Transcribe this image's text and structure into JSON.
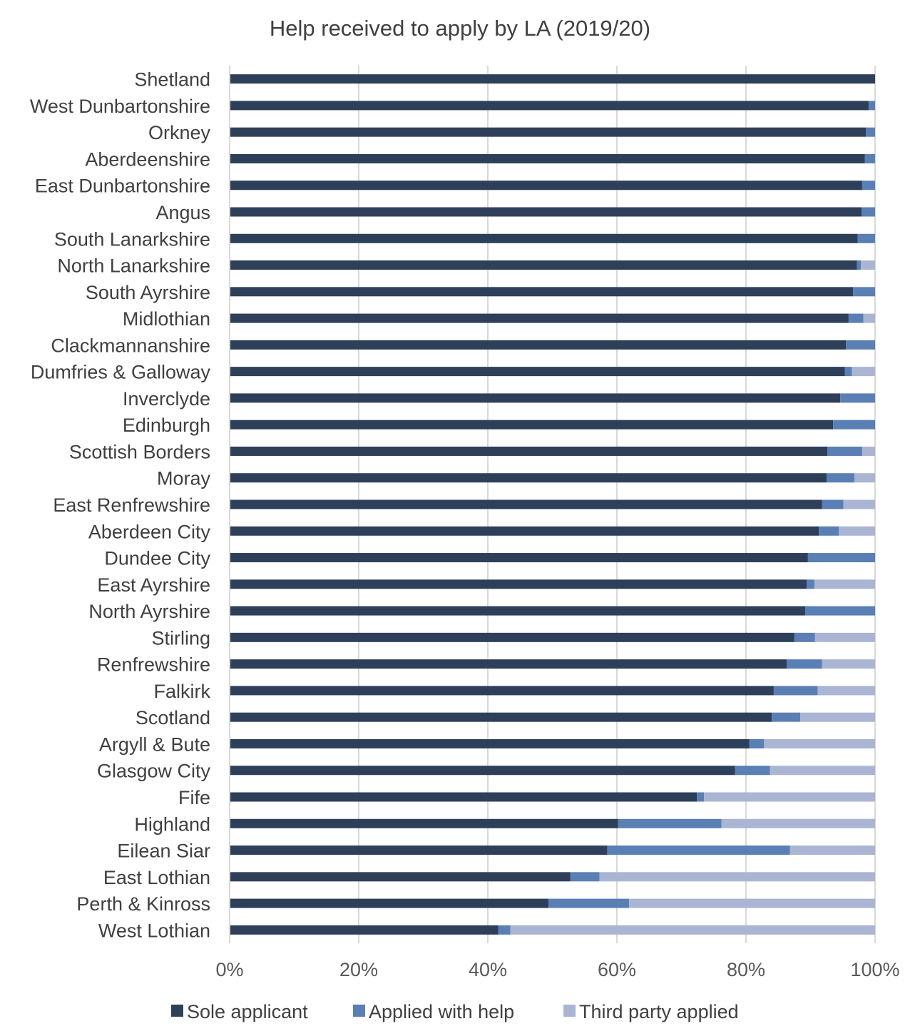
{
  "chart_data": {
    "type": "bar",
    "orientation": "horizontal",
    "stacked": "percent",
    "title": "Help received to apply by LA (2019/20)",
    "xlabel": "",
    "ylabel": "",
    "xlim": [
      0,
      100
    ],
    "x_ticks": [
      "0%",
      "20%",
      "40%",
      "60%",
      "80%",
      "100%"
    ],
    "grid": true,
    "legend_position": "bottom",
    "categories": [
      "Shetland",
      "West Dunbartonshire",
      "Orkney",
      "Aberdeenshire",
      "East Dunbartonshire",
      "Angus",
      "South Lanarkshire",
      "North Lanarkshire",
      "South Ayrshire",
      "Midlothian",
      "Clackmannanshire",
      "Dumfries & Galloway",
      "Inverclyde",
      "Edinburgh",
      "Scottish Borders",
      "Moray",
      "East Renfrewshire",
      "Aberdeen City",
      "Dundee City",
      "East Ayrshire",
      "North Ayrshire",
      "Stirling",
      "Renfrewshire",
      "Falkirk",
      "Scotland",
      "Argyll & Bute",
      "Glasgow City",
      "Fife",
      "Highland",
      "Eilean Siar",
      "East Lothian",
      "Perth & Kinross",
      "West Lothian"
    ],
    "series": [
      {
        "name": "Sole applicant",
        "color": "#2e3f5a",
        "values": [
          100,
          99.0,
          98.6,
          98.4,
          98.0,
          97.9,
          97.3,
          97.2,
          96.6,
          95.9,
          95.5,
          95.3,
          94.6,
          93.5,
          92.6,
          92.5,
          91.8,
          91.3,
          89.6,
          89.4,
          89.2,
          87.5,
          86.3,
          84.3,
          84.0,
          80.5,
          78.3,
          72.4,
          60.2,
          58.5,
          52.8,
          49.4,
          41.6
        ]
      },
      {
        "name": "Applied with help",
        "color": "#5a7fb5",
        "values": [
          0,
          1.0,
          1.4,
          1.6,
          2.0,
          2.1,
          2.7,
          0.6,
          3.4,
          2.3,
          4.5,
          1.1,
          5.4,
          6.5,
          5.4,
          4.3,
          3.3,
          3.1,
          10.4,
          1.2,
          10.8,
          3.2,
          5.5,
          6.8,
          4.4,
          2.3,
          5.4,
          1.1,
          16.0,
          28.3,
          4.5,
          12.5,
          1.9
        ]
      },
      {
        "name": "Third party applied",
        "color": "#aab5d3",
        "values": [
          0,
          0,
          0,
          0,
          0,
          0,
          0,
          2.2,
          0,
          1.8,
          0,
          3.6,
          0,
          0,
          2.0,
          3.2,
          4.9,
          5.6,
          0,
          9.4,
          0,
          9.3,
          8.2,
          8.9,
          11.6,
          17.2,
          16.3,
          26.5,
          23.8,
          13.2,
          42.7,
          38.1,
          56.5
        ]
      }
    ]
  }
}
